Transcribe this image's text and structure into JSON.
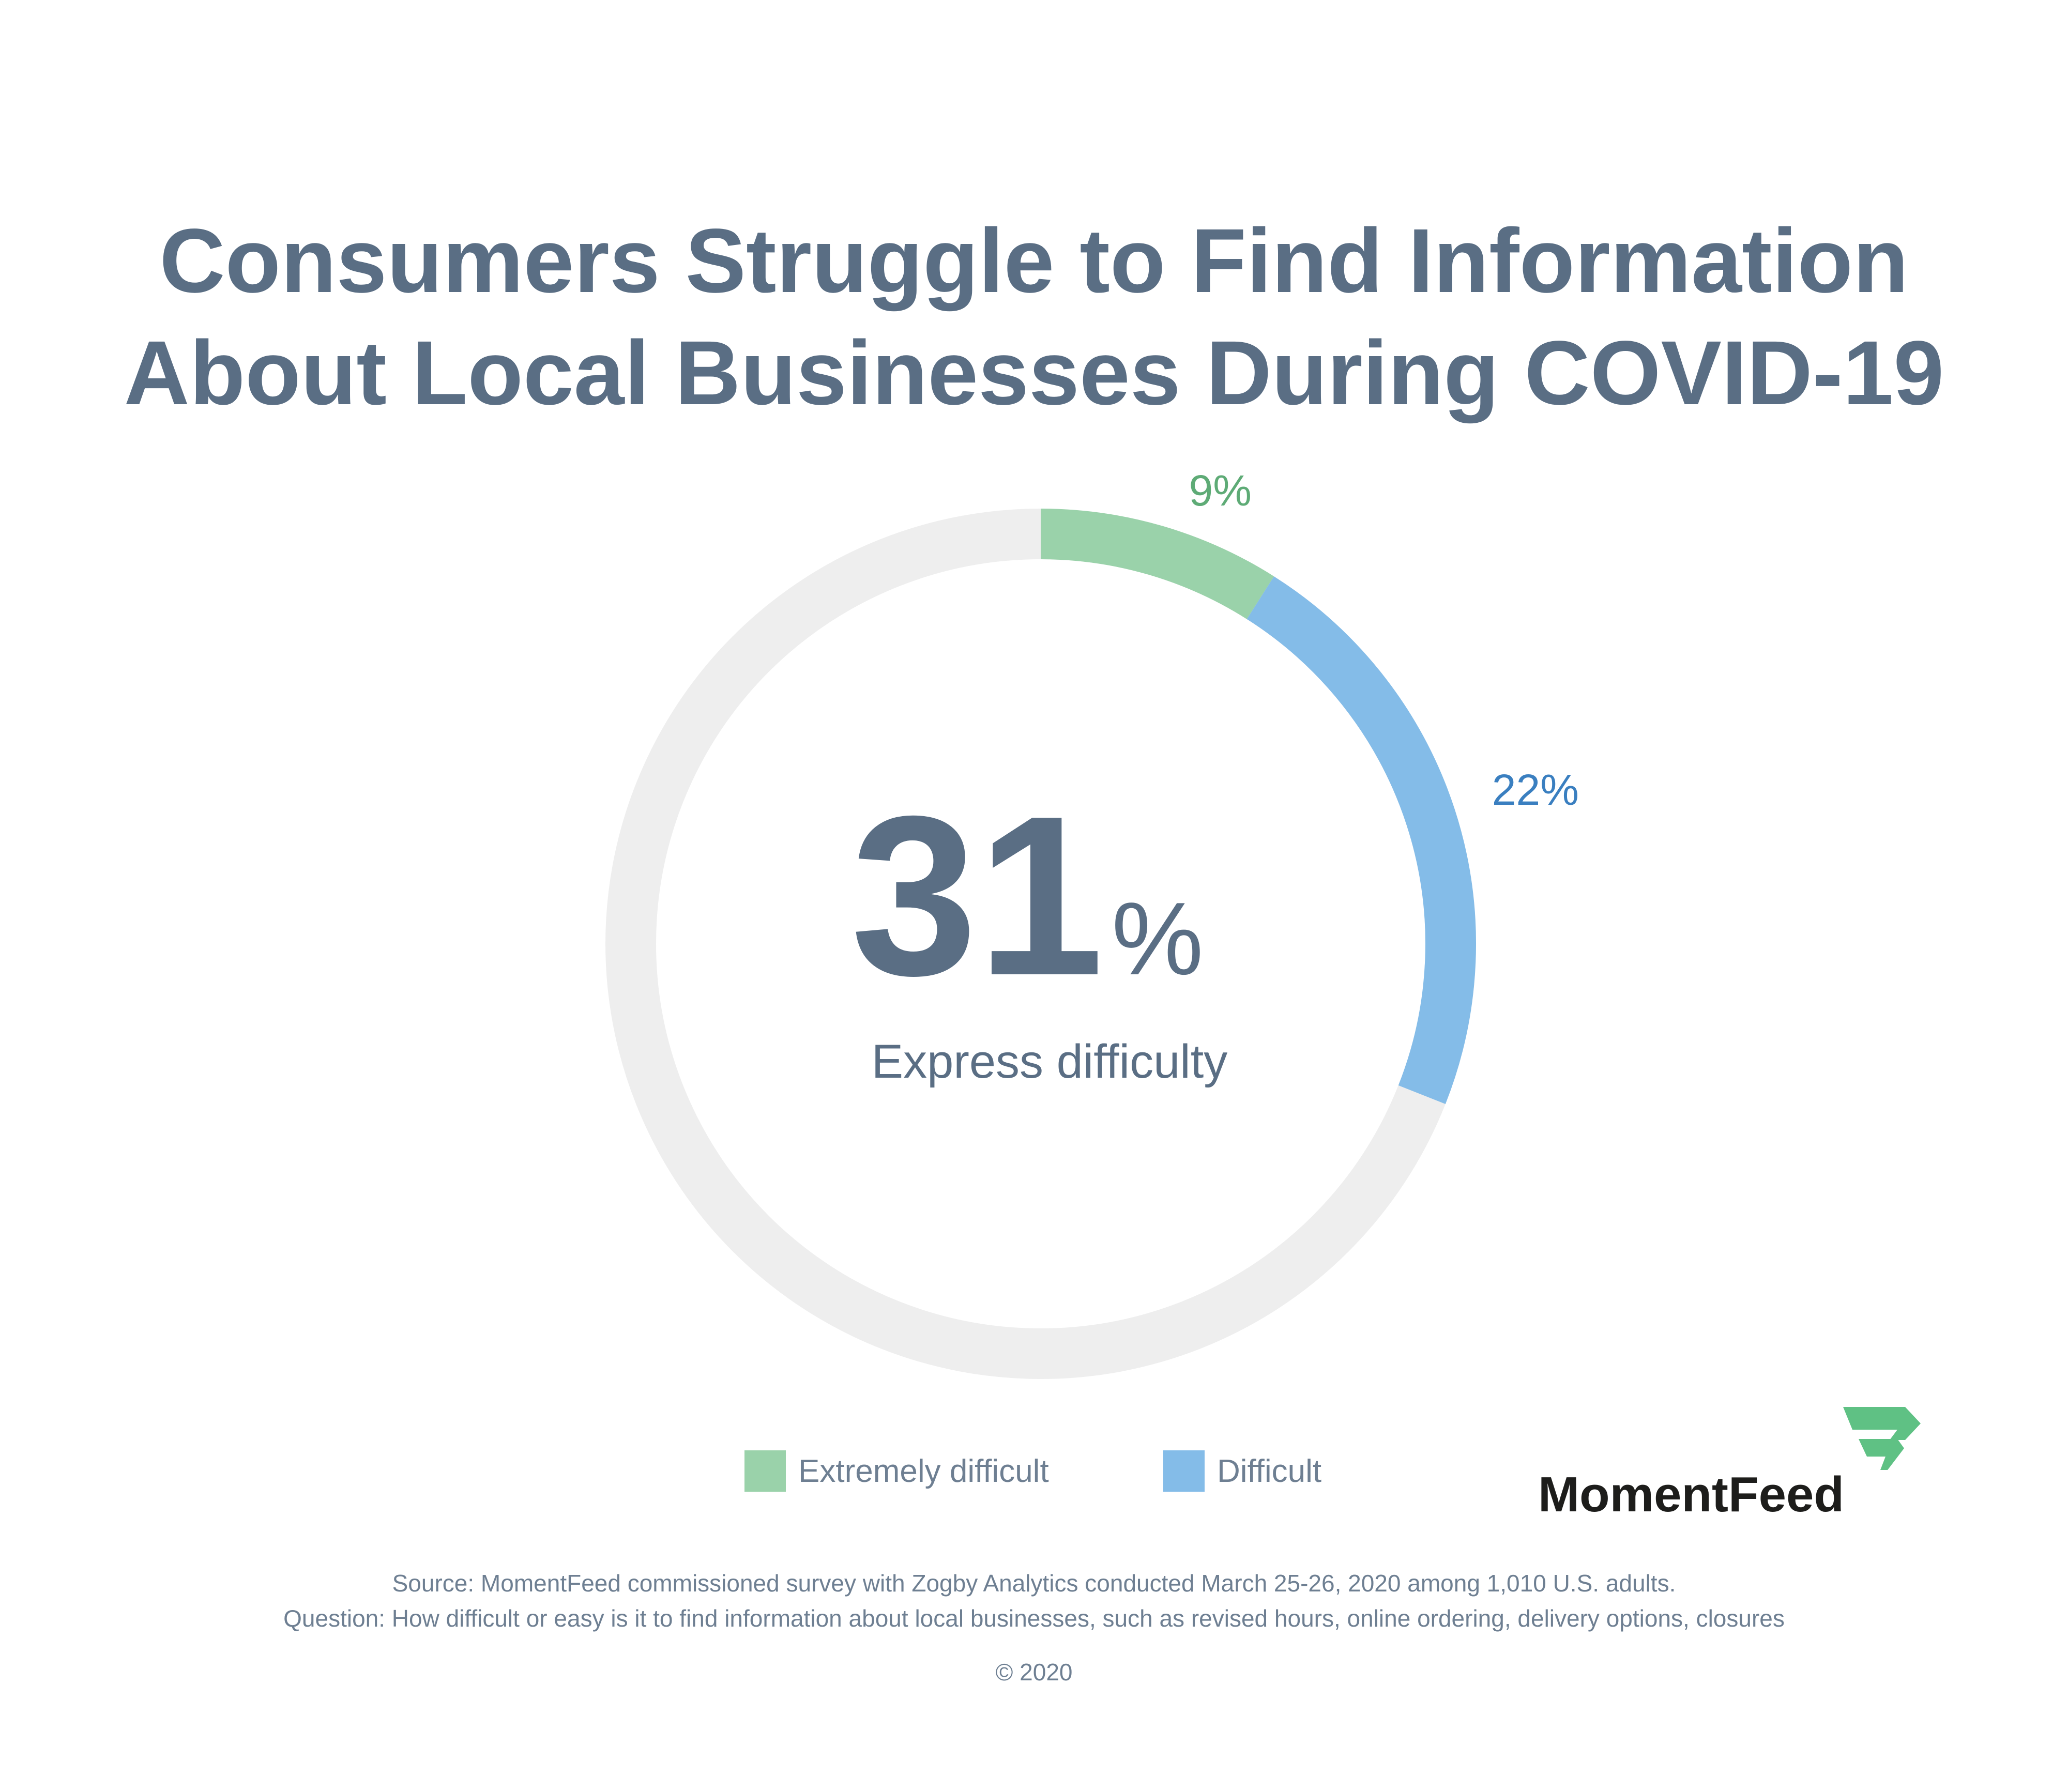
{
  "title": {
    "line1": "Consumers Struggle to Find Information",
    "line2": "About Local Businesses During COVID-19"
  },
  "center": {
    "value": "31",
    "unit": "%",
    "caption": "Express difficulty"
  },
  "chart_data": {
    "type": "pie",
    "variant": "donut",
    "categories": [
      "Extremely difficult",
      "Difficult"
    ],
    "values": [
      9,
      22
    ],
    "value_labels": [
      "9%",
      "22%"
    ],
    "total_percent": 100,
    "remainder_color": "#eeeeee",
    "colors": [
      "#9ad2aa",
      "#84bce8"
    ],
    "label_colors": [
      "#5eab76",
      "#3a7fc0"
    ],
    "start": "top",
    "direction": "clockwise",
    "legend": "bottom"
  },
  "legend": {
    "items": [
      {
        "label": "Extremely difficult",
        "color": "#9ad2aa"
      },
      {
        "label": "Difficult",
        "color": "#84bce8"
      }
    ]
  },
  "logo": {
    "text": "MomentFeed",
    "mark_color": "#5fc184",
    "icon": "momentfeed-flag-icon"
  },
  "footer": {
    "source": "Source: MomentFeed commissioned survey with Zogby Analytics conducted March 25-26, 2020 among 1,010 U.S. adults.",
    "question": "Question: How difficult or easy is it to find information about local businesses, such as revised hours, online ordering, delivery options, closures",
    "copyright": "© 2020"
  },
  "colors": {
    "text_primary": "#5a6e84",
    "text_secondary": "#6e7f92"
  }
}
